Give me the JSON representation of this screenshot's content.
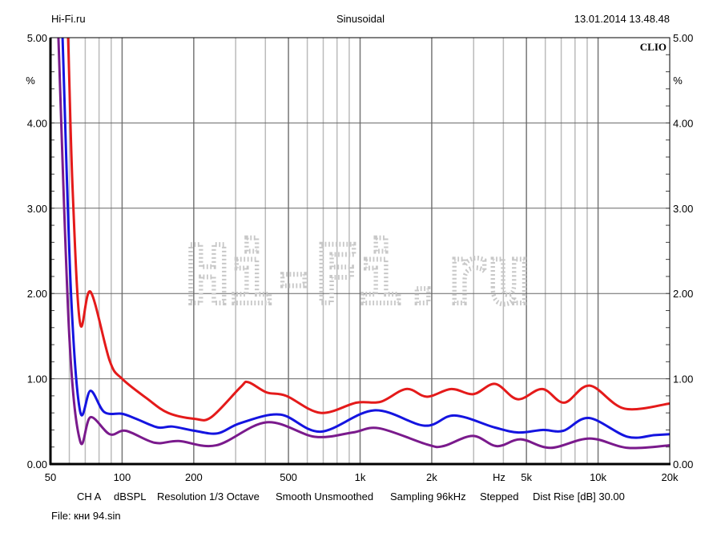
{
  "header": {
    "left": "Hi-Fi.ru",
    "center": "Sinusoidal",
    "right": "13.01.2014 13.48.48"
  },
  "brand": "CLIO",
  "watermark": "Hi-Fi.ru",
  "footer": {
    "settings": [
      "CH A",
      "dBSPL",
      "Resolution 1/3 Octave",
      "Smooth Unsmoothed",
      "Sampling 96kHz",
      "Stepped",
      "Dist Rise [dB] 30.00"
    ],
    "file": "File: кни 94.sin"
  },
  "chart_data": {
    "type": "line",
    "title": "Sinusoidal",
    "xlabel": "Hz",
    "ylabel": "%",
    "xscale": "log",
    "xlim": [
      50,
      20000
    ],
    "ylim": [
      0,
      5
    ],
    "grid": true,
    "x_ticks": [
      {
        "v": 50,
        "l": "50"
      },
      {
        "v": 100,
        "l": "100"
      },
      {
        "v": 200,
        "l": "200"
      },
      {
        "v": 500,
        "l": "500"
      },
      {
        "v": 1000,
        "l": "1k"
      },
      {
        "v": 2000,
        "l": "2k"
      },
      {
        "v": 5000,
        "l": "5k"
      },
      {
        "v": 10000,
        "l": "10k"
      },
      {
        "v": 20000,
        "l": "20k"
      }
    ],
    "y_ticks": [
      {
        "v": 0,
        "l": "0.00"
      },
      {
        "v": 1,
        "l": "1.00"
      },
      {
        "v": 2,
        "l": "2.00"
      },
      {
        "v": 3,
        "l": "3.00"
      },
      {
        "v": 4,
        "l": "4.00"
      },
      {
        "v": 5,
        "l": "5.00"
      }
    ],
    "series": [
      {
        "name": "red",
        "color": "#e41a1a",
        "points": [
          [
            57,
            6.5
          ],
          [
            59.3,
            5.0
          ],
          [
            62,
            3.2
          ],
          [
            66.6,
            1.65
          ],
          [
            73.7,
            2.02
          ],
          [
            88.7,
            1.21
          ],
          [
            100,
            1.0
          ],
          [
            127,
            0.77
          ],
          [
            156,
            0.6
          ],
          [
            202,
            0.53
          ],
          [
            237,
            0.55
          ],
          [
            314,
            0.9
          ],
          [
            339,
            0.96
          ],
          [
            405,
            0.84
          ],
          [
            489,
            0.8
          ],
          [
            682,
            0.6
          ],
          [
            966,
            0.72
          ],
          [
            1219,
            0.73
          ],
          [
            1563,
            0.88
          ],
          [
            1911,
            0.79
          ],
          [
            2414,
            0.88
          ],
          [
            2994,
            0.82
          ],
          [
            3693,
            0.94
          ],
          [
            4593,
            0.76
          ],
          [
            5833,
            0.88
          ],
          [
            7209,
            0.72
          ],
          [
            9223,
            0.92
          ],
          [
            12900,
            0.65
          ],
          [
            20000,
            0.71
          ]
        ]
      },
      {
        "name": "blue",
        "color": "#1414e0",
        "points": [
          [
            54,
            6.5
          ],
          [
            56.2,
            5.0
          ],
          [
            61,
            2.0
          ],
          [
            66.6,
            0.62
          ],
          [
            73.7,
            0.86
          ],
          [
            84.1,
            0.61
          ],
          [
            100,
            0.59
          ],
          [
            114.7,
            0.53
          ],
          [
            141,
            0.43
          ],
          [
            162.5,
            0.44
          ],
          [
            202,
            0.39
          ],
          [
            252,
            0.36
          ],
          [
            314,
            0.48
          ],
          [
            462,
            0.58
          ],
          [
            682,
            0.38
          ],
          [
            1146,
            0.63
          ],
          [
            1867,
            0.45
          ],
          [
            2488,
            0.57
          ],
          [
            3667,
            0.43
          ],
          [
            4623,
            0.37
          ],
          [
            5833,
            0.4
          ],
          [
            7140,
            0.39
          ],
          [
            9160,
            0.54
          ],
          [
            13280,
            0.32
          ],
          [
            17290,
            0.34
          ],
          [
            20000,
            0.35
          ]
        ]
      },
      {
        "name": "purple",
        "color": "#7a1a8c",
        "points": [
          [
            52,
            6.5
          ],
          [
            54,
            5.0
          ],
          [
            60,
            1.5
          ],
          [
            66.6,
            0.27
          ],
          [
            73.7,
            0.55
          ],
          [
            88.7,
            0.35
          ],
          [
            103.7,
            0.39
          ],
          [
            137,
            0.25
          ],
          [
            173,
            0.27
          ],
          [
            249,
            0.22
          ],
          [
            405,
            0.49
          ],
          [
            646,
            0.32
          ],
          [
            929,
            0.37
          ],
          [
            1200,
            0.42
          ],
          [
            1911,
            0.23
          ],
          [
            2233,
            0.21
          ],
          [
            2972,
            0.33
          ],
          [
            3751,
            0.21
          ],
          [
            4732,
            0.29
          ],
          [
            6304,
            0.19
          ],
          [
            9223,
            0.3
          ],
          [
            13280,
            0.19
          ],
          [
            20000,
            0.22
          ]
        ]
      }
    ]
  }
}
